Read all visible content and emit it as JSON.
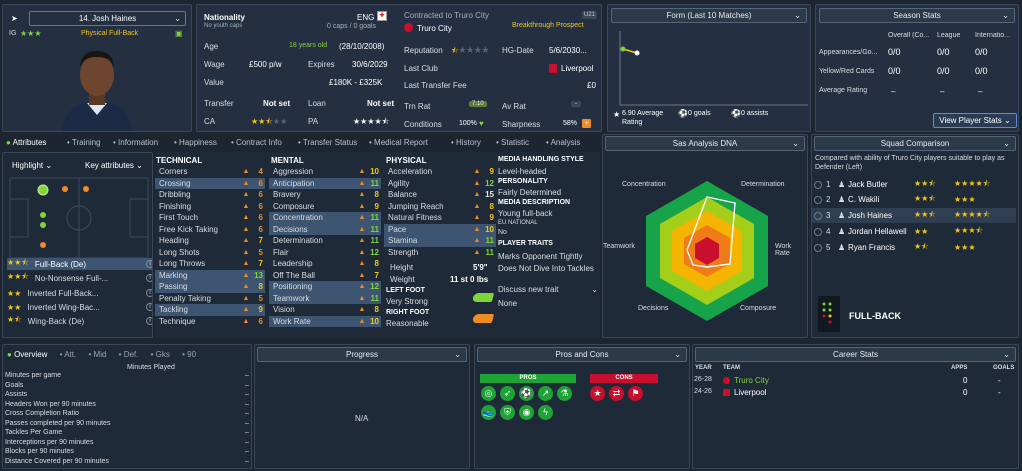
{
  "player": {
    "number_name": "14. Josh Haines",
    "position_label": "Physical Full-Back",
    "ig": "IG"
  },
  "nationality": {
    "label": "Nationality",
    "value": "ENG",
    "caps_label": "No youth caps",
    "caps_value": "0 caps / 0 goals"
  },
  "contract": {
    "contracted_label": "Contracted to Truro City",
    "club": "Truro City",
    "prospect": "Breakthrough Prospect",
    "u21": "U21"
  },
  "details": {
    "age_label": "Age",
    "age_value": "18 years old",
    "age_dob": "(28/10/2008)",
    "wage_label": "Wage",
    "wage_value": "£500 p/w",
    "expires_label": "Expires",
    "expires_value": "30/6/2029",
    "value_label": "Value",
    "value_value": "£180K - £325K",
    "transfer_label": "Transfer",
    "transfer_value": "Not set",
    "loan_label": "Loan",
    "loan_value": "Not set",
    "ca_label": "CA",
    "pa_label": "PA",
    "reputation_label": "Reputation",
    "hgdate_label": "HG-Date",
    "hgdate_value": "5/6/2030...",
    "lastclub_label": "Last Club",
    "lastclub_value": "Liverpool",
    "ltf_label": "Last Transfer Fee",
    "ltf_value": "£0",
    "trnrat_label": "Trn Rat",
    "trnrat_value": "7.10",
    "avrat_label": "Av Rat",
    "avrat_value": "-",
    "conditions_label": "Conditions",
    "conditions_value": "100%",
    "sharpness_label": "Sharpness",
    "sharpness_value": "58%"
  },
  "form": {
    "title": "Form (Last 10 Matches)",
    "avg": "6.90 Average",
    "rating": "Rating",
    "goals": "0 goals",
    "assists": "0 assists"
  },
  "season": {
    "title": "Season Stats",
    "col1": "Overall (Co...",
    "col2": "League",
    "col3": "Internatio...",
    "rows": [
      {
        "label": "Appearances/Go...",
        "v1": "0/0",
        "v2": "0/0",
        "v3": "0/0"
      },
      {
        "label": "Yellow/Red Cards",
        "v1": "0/0",
        "v2": "0/0",
        "v3": "0/0"
      },
      {
        "label": "Average Rating",
        "v1": "–",
        "v2": "–",
        "v3": "–"
      }
    ],
    "button": "View Player Stats"
  },
  "tabs": [
    "Attributes",
    "Training",
    "Information",
    "Happiness",
    "Contract Info",
    "Transfer Status",
    "Medical Report",
    "History",
    "Statistic",
    "Analysis"
  ],
  "pitch": {
    "highlight": "Highlight",
    "key": "Key attributes"
  },
  "positions": [
    {
      "label": "Full-Back (De)"
    },
    {
      "label": "No-Nonsense Full-..."
    },
    {
      "label": "Inverted Full-Back..."
    },
    {
      "label": "Inverted Wing-Bac..."
    },
    {
      "label": "Wing-Back (De)"
    }
  ],
  "technical": {
    "title": "TECHNICAL",
    "rows": [
      {
        "l": "Corners",
        "v": "4"
      },
      {
        "l": "Crossing",
        "v": "6"
      },
      {
        "l": "Dribbling",
        "v": "6"
      },
      {
        "l": "Finishing",
        "v": "6"
      },
      {
        "l": "First Touch",
        "v": "6"
      },
      {
        "l": "Free Kick Taking",
        "v": "6"
      },
      {
        "l": "Heading",
        "v": "7"
      },
      {
        "l": "Long Shots",
        "v": "5"
      },
      {
        "l": "Long Throws",
        "v": "7"
      },
      {
        "l": "Marking",
        "v": "13"
      },
      {
        "l": "Passing",
        "v": "8"
      },
      {
        "l": "Penalty Taking",
        "v": "5"
      },
      {
        "l": "Tackling",
        "v": "9"
      },
      {
        "l": "Technique",
        "v": "6"
      }
    ]
  },
  "mental": {
    "title": "MENTAL",
    "rows": [
      {
        "l": "Aggression",
        "v": "10"
      },
      {
        "l": "Anticipation",
        "v": "11"
      },
      {
        "l": "Bravery",
        "v": "8"
      },
      {
        "l": "Composure",
        "v": "9"
      },
      {
        "l": "Concentration",
        "v": "11"
      },
      {
        "l": "Decisions",
        "v": "11"
      },
      {
        "l": "Determination",
        "v": "11"
      },
      {
        "l": "Flair",
        "v": "12"
      },
      {
        "l": "Leadership",
        "v": "8"
      },
      {
        "l": "Off The Ball",
        "v": "7"
      },
      {
        "l": "Positioning",
        "v": "12"
      },
      {
        "l": "Teamwork",
        "v": "11"
      },
      {
        "l": "Vision",
        "v": "8"
      },
      {
        "l": "Work Rate",
        "v": "10"
      }
    ]
  },
  "physical": {
    "title": "PHYSICAL",
    "rows": [
      {
        "l": "Acceleration",
        "v": "9"
      },
      {
        "l": "Agility",
        "v": "12"
      },
      {
        "l": "Balance",
        "v": "15"
      },
      {
        "l": "Jumping Reach",
        "v": "8"
      },
      {
        "l": "Natural Fitness",
        "v": "9"
      },
      {
        "l": "Pace",
        "v": "10"
      },
      {
        "l": "Stamina",
        "v": "11"
      },
      {
        "l": "Strength",
        "v": "11"
      }
    ],
    "height_label": "Height",
    "height_value": "5'9\"",
    "weight_label": "Weight",
    "weight_value": "11 st 0 lbs",
    "lf_label": "LEFT FOOT",
    "lf_value": "Very Strong",
    "rf_label": "RIGHT FOOT",
    "rf_value": "Reasonable"
  },
  "media": {
    "title": "MEDIA HANDLING STYLE",
    "style": "Level-headed",
    "pers_title": "PERSONALITY",
    "pers": "Fairly Determined",
    "desc_title": "MEDIA DESCRIPTION",
    "desc": "Young full-back",
    "eu_title": "EU NATIONAL",
    "eu": "No",
    "traits_title": "PLAYER TRAITS",
    "traits": [
      "Marks Opponent Tightly",
      "Does Not Dive Into Tackles"
    ],
    "discuss": "Discuss new trait",
    "none": "None"
  },
  "dna": {
    "title": "Sas Analysis DNA",
    "labels": {
      "conc": "Concentration",
      "det": "Determination",
      "team": "Teamwork",
      "work": "Work Rate",
      "dec": "Decisions",
      "comp": "Composure"
    }
  },
  "squad": {
    "title": "Squad Comparison",
    "desc": "Compared with ability of Truro City players suitable to play as Defender (Left)",
    "rows": [
      {
        "n": "1",
        "name": "Jack Butler"
      },
      {
        "n": "2",
        "name": "C. Wakili"
      },
      {
        "n": "3",
        "name": "Josh Haines"
      },
      {
        "n": "4",
        "name": "Jordan Hellawell"
      },
      {
        "n": "5",
        "name": "Ryan Francis"
      }
    ],
    "role": "FULL-BACK"
  },
  "overview": {
    "tabs": [
      "Overview",
      "Att.",
      "Mid",
      "Def.",
      "Gks",
      "90"
    ],
    "minutes": "Minutes Played",
    "rows": [
      "Minutes per game",
      "Goals",
      "Assists",
      "Headers Won per 90 minutes",
      "Cross Completion Ratio",
      "Passes completed per 90 minutes",
      "Tackles Per Game",
      "Interceptions per 90 minutes",
      "Blocks per 90 minutes",
      "Distance Covered per 90 minutes"
    ],
    "dash": "–"
  },
  "progress": {
    "title": "Progress",
    "na": "N/A"
  },
  "proscons": {
    "title": "Pros and Cons",
    "pros": "PROS",
    "cons": "CONS"
  },
  "career": {
    "title": "Career Stats",
    "year": "YEAR",
    "team": "TEAM",
    "apps": "APPS",
    "goals": "GOALS",
    "rows": [
      {
        "y": "26-28",
        "t": "Truro City",
        "a": "0",
        "g": "-"
      },
      {
        "y": "24-26",
        "t": "Liverpool",
        "a": "0",
        "g": "-"
      }
    ]
  },
  "colors": {
    "accent": "#7fd53a",
    "bg": "#1d2531",
    "panel": "#243042"
  }
}
